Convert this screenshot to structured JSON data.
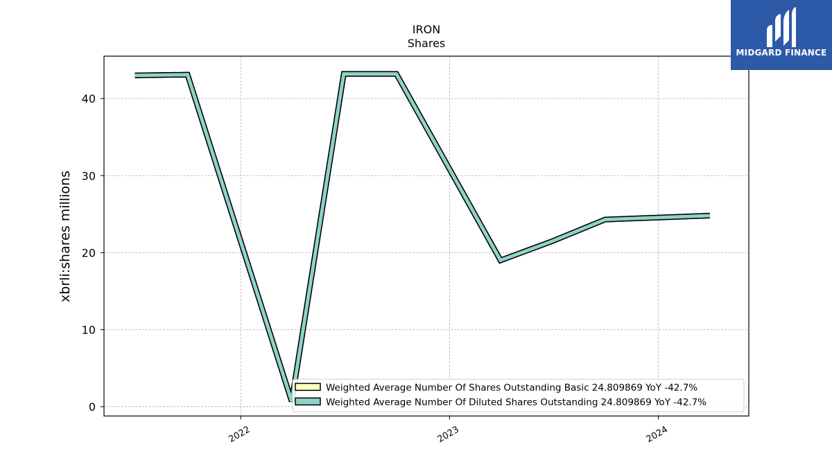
{
  "logo": {
    "text": "MIDGARD FINANCE",
    "background": "#2c5aa8"
  },
  "chart_data": {
    "type": "line",
    "title": "IRON",
    "subtitle": "Shares",
    "xlabel": "",
    "ylabel": "xbrli:shares millions",
    "x_ticks": [
      "2022",
      "2023",
      "2024"
    ],
    "y_ticks": [
      0,
      10,
      20,
      30,
      40
    ],
    "ylim": [
      -1.2,
      45.5
    ],
    "xlim": [
      "2021-05-07",
      "2024-06-07"
    ],
    "grid": true,
    "legend_position": "lower-right",
    "x": [
      "2021-06-30",
      "2021-09-30",
      "2022-03-31",
      "2022-06-30",
      "2022-09-30",
      "2023-03-31",
      "2023-06-30",
      "2023-09-30",
      "2024-03-31"
    ],
    "series": [
      {
        "name": "Weighted Average Number Of Shares Outstanding Basic  24.809869 YoY -42.7%",
        "color": "#ffffc0",
        "values": [
          43.0,
          43.1,
          0.7,
          43.2,
          43.2,
          19.0,
          21.5,
          24.3,
          24.8
        ]
      },
      {
        "name": "Weighted Average Number Of Diluted Shares Outstanding  24.809869 YoY -42.7%",
        "color": "#8dd3c7",
        "values": [
          43.0,
          43.1,
          0.7,
          43.2,
          43.2,
          19.0,
          21.5,
          24.3,
          24.8
        ]
      }
    ]
  }
}
